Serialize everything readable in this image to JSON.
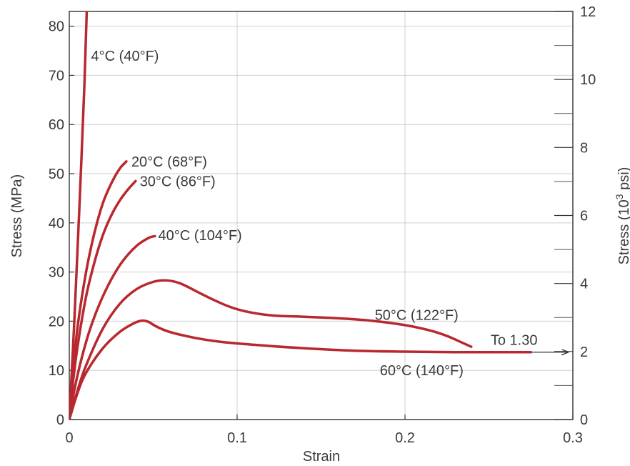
{
  "chart_data": {
    "type": "line",
    "xlabel": "Strain",
    "ylabel": "Stress (MPa)",
    "y2label_prefix": "Stress (10",
    "y2label_sup": "3",
    "y2label_suffix": " psi)",
    "xlim": [
      0,
      0.3
    ],
    "ylim": [
      0,
      83
    ],
    "y2lim": [
      0,
      12
    ],
    "x_ticks": [
      0,
      0.1,
      0.2,
      0.3
    ],
    "x_tick_labels": [
      "0",
      "0.1",
      "0.2",
      "0.3"
    ],
    "y_ticks": [
      0,
      10,
      20,
      30,
      40,
      50,
      60,
      70,
      80
    ],
    "y_tick_labels": [
      "0",
      "10",
      "20",
      "30",
      "40",
      "50",
      "60",
      "70",
      "80"
    ],
    "y2_ticks": [
      0,
      2,
      4,
      6,
      8,
      10,
      12
    ],
    "y2_tick_labels": [
      "0",
      "2",
      "4",
      "6",
      "8",
      "10",
      "12"
    ],
    "y2_minor_ticks": [
      1,
      3,
      5,
      7,
      9,
      11
    ],
    "grid": true,
    "line_color": "#b8282e",
    "series": [
      {
        "name": "4°C (40°F)",
        "label_x": 0.013,
        "label_y": 74,
        "x": [
          0,
          0.003,
          0.006,
          0.009,
          0.0105
        ],
        "y": [
          0,
          20,
          43,
          68,
          84
        ]
      },
      {
        "name": "20°C (68°F)",
        "label_x": 0.037,
        "label_y": 52.5,
        "x": [
          0,
          0.002,
          0.005,
          0.01,
          0.015,
          0.02,
          0.025,
          0.03,
          0.034
        ],
        "y": [
          0,
          9,
          19,
          30,
          38,
          44,
          48,
          51,
          52.5
        ]
      },
      {
        "name": "30°C (86°F)",
        "label_x": 0.042,
        "label_y": 48.5,
        "x": [
          0,
          0.002,
          0.005,
          0.01,
          0.015,
          0.02,
          0.025,
          0.03,
          0.035,
          0.0395
        ],
        "y": [
          0,
          7,
          15,
          25,
          32,
          37.5,
          41.5,
          44.5,
          46.8,
          48.5
        ]
      },
      {
        "name": "40°C (104°F)",
        "label_x": 0.053,
        "label_y": 37.5,
        "x": [
          0,
          0.003,
          0.007,
          0.012,
          0.018,
          0.025,
          0.032,
          0.04,
          0.047,
          0.051
        ],
        "y": [
          0,
          6,
          12,
          18,
          23.5,
          28.5,
          32.3,
          35.3,
          36.9,
          37.3
        ]
      },
      {
        "name": "50°C (122°F)",
        "label_x": 0.182,
        "label_y": 21.3,
        "x": [
          0,
          0.005,
          0.01,
          0.02,
          0.03,
          0.04,
          0.05,
          0.058,
          0.066,
          0.075,
          0.085,
          0.095,
          0.105,
          0.12,
          0.14,
          0.16,
          0.18,
          0.2,
          0.215,
          0.225,
          0.233,
          0.2395
        ],
        "y": [
          0,
          6,
          11,
          18.5,
          23.5,
          26.5,
          28,
          28.3,
          27.7,
          26.2,
          24.5,
          23,
          22,
          21.2,
          20.9,
          20.6,
          20.1,
          19.2,
          18.1,
          17,
          15.8,
          14.8
        ]
      },
      {
        "name": "60°C (140°F)",
        "label_x": 0.185,
        "label_y": 10,
        "x": [
          0,
          0.005,
          0.01,
          0.02,
          0.03,
          0.038,
          0.043,
          0.047,
          0.052,
          0.06,
          0.075,
          0.09,
          0.11,
          0.14,
          0.17,
          0.2,
          0.23,
          0.26,
          0.275
        ],
        "y": [
          0,
          5.5,
          9.5,
          14.5,
          17.8,
          19.5,
          20.1,
          19.9,
          18.9,
          17.8,
          16.6,
          15.8,
          15.2,
          14.5,
          14,
          13.8,
          13.7,
          13.7,
          13.7
        ]
      }
    ],
    "annotations": [
      {
        "text": "To 1.30",
        "x": 0.251,
        "y": 16.2,
        "arrow_from": [
          0.275,
          13.7
        ],
        "arrow_to": [
          0.297,
          13.7
        ]
      }
    ]
  }
}
